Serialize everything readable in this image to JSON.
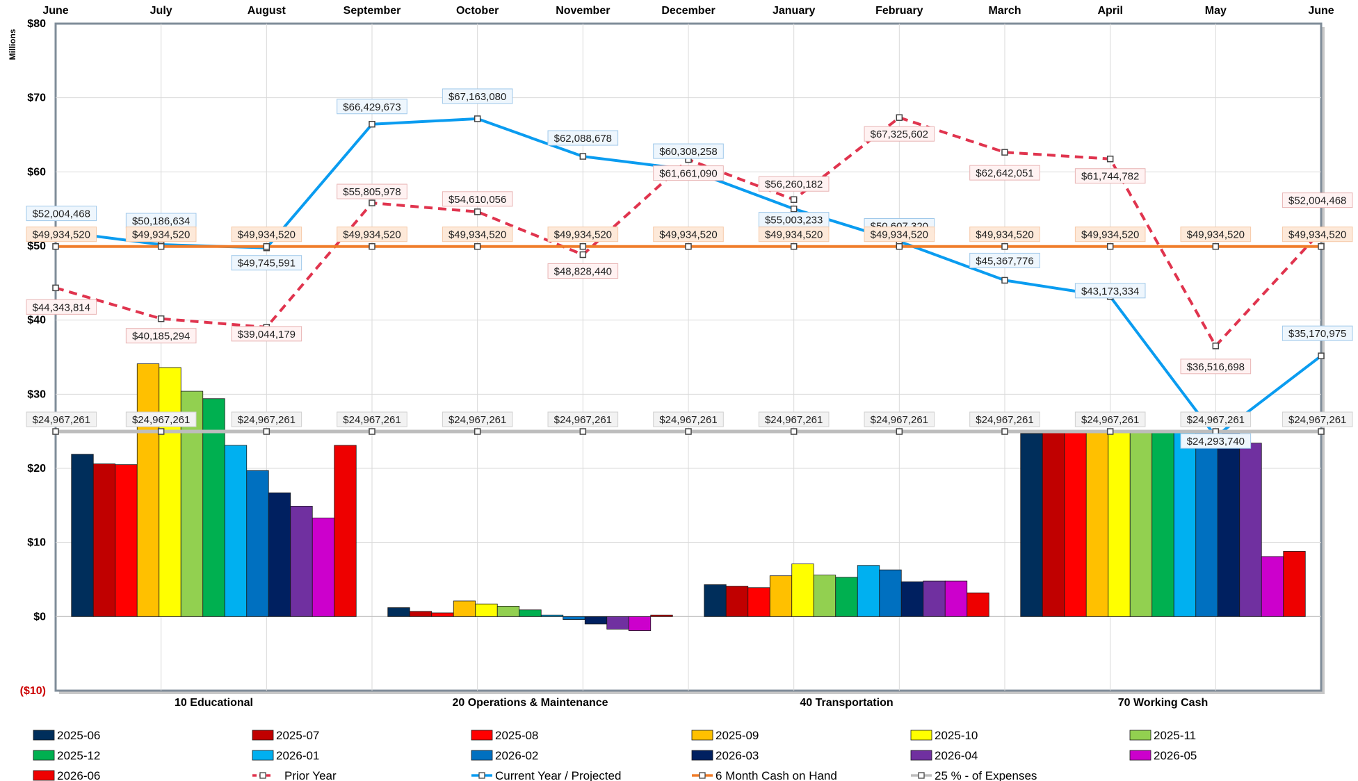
{
  "chart_data": {
    "type": "bar",
    "ylabel": "Millions",
    "ylim": [
      -10,
      80
    ],
    "y_ticks": [
      -10,
      0,
      10,
      20,
      30,
      40,
      50,
      60,
      70,
      80
    ],
    "y_tick_labels": [
      "($10)",
      "$0",
      "$10",
      "$20",
      "$30",
      "$40",
      "$50",
      "$60",
      "$70",
      "$80"
    ],
    "top_axis_labels": [
      "June",
      "July",
      "August",
      "September",
      "October",
      "November",
      "December",
      "January",
      "February",
      "March",
      "April",
      "May",
      "June"
    ],
    "categories": [
      "10 Educational",
      "20 Operations & Maintenance",
      "40 Transportation",
      "70 Working Cash"
    ],
    "series": [
      {
        "name": "2025-06",
        "color": "#002e5b",
        "values": [
          21.9,
          1.2,
          4.3,
          24.7
        ]
      },
      {
        "name": "2025-07",
        "color": "#c00000",
        "values": [
          20.6,
          0.7,
          4.1,
          24.8
        ]
      },
      {
        "name": "2025-08",
        "color": "#ff0000",
        "values": [
          20.5,
          0.5,
          3.9,
          24.8
        ]
      },
      {
        "name": "2025-09",
        "color": "#ffc000",
        "values": [
          34.1,
          2.1,
          5.5,
          24.8
        ]
      },
      {
        "name": "2025-10",
        "color": "#ffff00",
        "values": [
          33.6,
          1.7,
          7.1,
          24.8
        ]
      },
      {
        "name": "2025-11",
        "color": "#92d050",
        "values": [
          30.4,
          1.4,
          5.6,
          24.8
        ]
      },
      {
        "name": "2025-12",
        "color": "#00b050",
        "values": [
          29.4,
          0.9,
          5.3,
          24.8
        ]
      },
      {
        "name": "2026-01",
        "color": "#00b0f0",
        "values": [
          23.1,
          0.2,
          6.9,
          24.8
        ]
      },
      {
        "name": "2026-02",
        "color": "#0070c0",
        "values": [
          19.7,
          -0.4,
          6.3,
          24.8
        ]
      },
      {
        "name": "2026-03",
        "color": "#002060",
        "values": [
          16.7,
          -1.0,
          4.7,
          24.8
        ]
      },
      {
        "name": "2026-04",
        "color": "#7030a0",
        "values": [
          14.9,
          -1.7,
          4.8,
          23.4
        ]
      },
      {
        "name": "2026-05",
        "color": "#cc00cc",
        "values": [
          13.3,
          -1.9,
          4.8,
          8.1
        ]
      },
      {
        "name": "2026-06",
        "color": "#ee0000",
        "values": [
          23.1,
          0.2,
          3.2,
          8.8
        ]
      }
    ],
    "lines": [
      {
        "name": "Prior Year",
        "color": "#e0344e",
        "style": "dashed",
        "values": [
          44343814,
          40185294,
          39044179,
          55805978,
          54610056,
          48828440,
          61661090,
          56260182,
          67325602,
          62642051,
          61744782,
          36516698,
          52004468
        ],
        "labels": [
          "$44,343,814",
          "$40,185,294",
          "$39,044,179",
          "$55,805,978",
          "$54,610,056",
          "$48,828,440",
          "$61,661,090",
          "$56,260,182",
          "$67,325,602",
          "$62,642,051",
          "$61,744,782",
          "$36,516,698",
          "$52,004,468"
        ]
      },
      {
        "name": "Current Year / Projected",
        "color": "#0a9cf0",
        "style": "solid",
        "values": [
          52004468,
          50186634,
          49745591,
          66429673,
          67163080,
          62088678,
          60308258,
          55003233,
          50607320,
          45367776,
          43173334,
          24293740,
          35170975
        ],
        "labels": [
          "$52,004,468",
          "$50,186,634",
          "$49,745,591",
          "$66,429,673",
          "$67,163,080",
          "$62,088,678",
          "$60,308,258",
          "$55,003,233",
          "$50,607,320",
          "$45,367,776",
          "$43,173,334",
          "$24,293,740",
          "$35,170,975"
        ]
      },
      {
        "name": "6 Month Cash on Hand",
        "color": "#f07d2a",
        "style": "solid",
        "values": [
          49934520,
          49934520,
          49934520,
          49934520,
          49934520,
          49934520,
          49934520,
          49934520,
          49934520,
          49934520,
          49934520,
          49934520,
          49934520
        ],
        "labels": [
          "$49,934,520",
          "$49,934,520",
          "$49,934,520",
          "$49,934,520",
          "$49,934,520",
          "$49,934,520",
          "$49,934,520",
          "$49,934,520",
          "$49,934,520",
          "$49,934,520",
          "$49,934,520",
          "$49,934,520",
          "$49,934,520"
        ]
      },
      {
        "name": "25 % - of Expenses",
        "color": "#bdbdbd",
        "style": "solid",
        "values": [
          24967261,
          24967261,
          24967261,
          24967261,
          24967261,
          24967261,
          24967261,
          24967261,
          24967261,
          24967261,
          24967261,
          24967261,
          24967261
        ],
        "labels": [
          "$24,967,261",
          "$24,967,261",
          "$24,967,261",
          "$24,967,261",
          "$24,967,261",
          "$24,967,261",
          "$24,967,261",
          "$24,967,261",
          "$24,967,261",
          "$24,967,261",
          "$24,967,261",
          "$24,967,261",
          "$24,967,261"
        ]
      }
    ],
    "legend_position": "bottom",
    "grid": true
  }
}
